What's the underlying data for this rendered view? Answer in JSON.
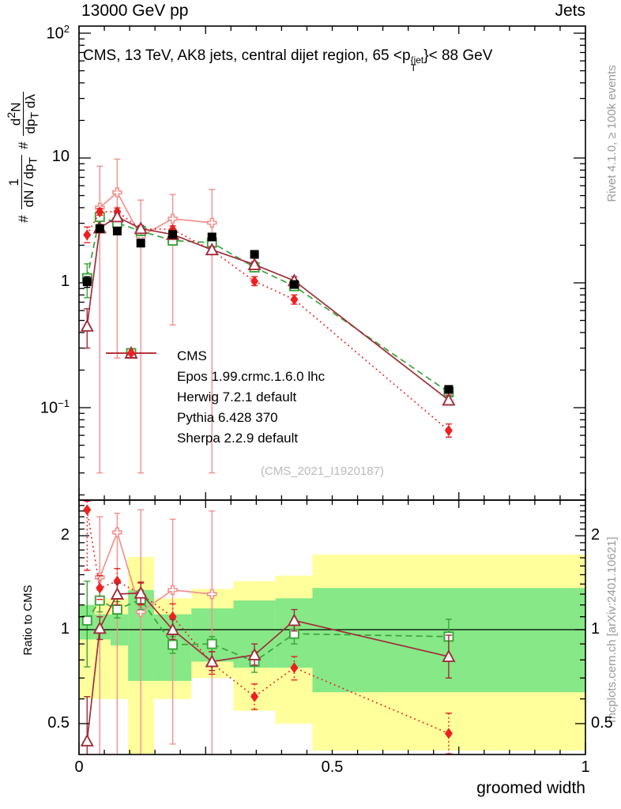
{
  "header": {
    "left": "13000 GeV pp",
    "right": "Jets"
  },
  "panel_title": {
    "pre": "CMS, 13 TeV, AK8 jets, central dijet region, 65 <p",
    "sup": "{jet",
    "sub": "T",
    "post": "}< 88 GeV"
  },
  "y_axis_label": {
    "hash1": "#",
    "f1num": "1",
    "f1den_main": "dN / dp",
    "f1den_sub": "T",
    "hash2": "#",
    "f2num_pre": "d",
    "f2num_sup": "2",
    "f2num_post": "N",
    "f2den_main": "dp",
    "f2den_sub": "T",
    "f2den_post": " dλ"
  },
  "right_margin": {
    "top": "Rivet 4.1.0, ≥ 100k events",
    "bottom": "mcplots.cern.ch [arXiv:2401.10621]"
  },
  "watermark": "(CMS_2021_I1920187)",
  "ratio_label": "Ratio to CMS",
  "x_title": "groomed width",
  "legend": {
    "items": [
      {
        "label": "CMS"
      },
      {
        "label": "Epos 1.99.crmc.1.6.0 lhc"
      },
      {
        "label": "Herwig 7.2.1 default"
      },
      {
        "label": "Pythia 6.428 370"
      },
      {
        "label": "Sherpa 2.2.9 default"
      }
    ]
  },
  "axes": {
    "x_ticks": [
      {
        "v": 0,
        "label": "0"
      },
      {
        "v": 0.5,
        "label": "0.5"
      },
      {
        "v": 1,
        "label": "1"
      }
    ],
    "main_y_ticks": [
      {
        "v": 100,
        "base": "10",
        "exp": "2"
      },
      {
        "v": 10,
        "base": "10",
        "exp": ""
      },
      {
        "v": 1,
        "base": "1",
        "exp": ""
      },
      {
        "v": 0.1,
        "base": "10",
        "exp": "−1"
      }
    ],
    "ratio_y_ticks": [
      {
        "v": 2,
        "label": "2"
      },
      {
        "v": 1,
        "label": "1"
      },
      {
        "v": 0.5,
        "label": "0.5"
      }
    ]
  },
  "chart_data": {
    "type": "line",
    "title": "CMS, 13 TeV, AK8 jets, central dijet region, 65 < pT^{jet} < 88 GeV",
    "xlabel": "groomed width",
    "ylabel": "(1 / dN/dpT) d2N/(dpT dlambda)",
    "ratio_ylabel": "Ratio to CMS",
    "x_range": [
      0,
      1
    ],
    "main_y_log_range": [
      0.018,
      114
    ],
    "ratio_y_log_range": [
      0.4,
      2.6
    ],
    "legend_position": "middle-left",
    "grid": false,
    "bin_edges": [
      0,
      0.031,
      0.0625,
      0.097,
      0.148,
      0.222,
      0.305,
      0.388,
      0.461,
      1.0
    ],
    "x": [
      0.016,
      0.041,
      0.0755,
      0.122,
      0.185,
      0.2625,
      0.3465,
      0.425,
      0.73
    ],
    "reference_band": {
      "yellow_color": "#ffff9c",
      "green_color": "#86e886",
      "yellow": [
        [
          0.6,
          1.2
        ],
        [
          0.6,
          1.26
        ],
        [
          0.6,
          1.26
        ],
        [
          0.4,
          1.71
        ],
        [
          0.6,
          1.26
        ],
        [
          0.7,
          1.35
        ],
        [
          0.55,
          1.43
        ],
        [
          0.5,
          1.49
        ],
        [
          0.41,
          1.74
        ]
      ],
      "green": [
        [
          0.93,
          1.2
        ],
        [
          0.93,
          1.12
        ],
        [
          0.89,
          1.12
        ],
        [
          0.685,
          1.34
        ],
        [
          0.685,
          1.12
        ],
        [
          0.79,
          1.17
        ],
        [
          0.755,
          1.24
        ],
        [
          0.755,
          1.26
        ],
        [
          0.63,
          1.36
        ]
      ]
    },
    "series": [
      {
        "name": "Epos 1.99.crmc.1.6.0 lhc",
        "color": "#f2918d",
        "marker": "open-cross",
        "line": "solid",
        "y": [
          null,
          4.0,
          5.3,
          2.36,
          3.26,
          3.03,
          null,
          null,
          null
        ],
        "yerr_lo": [
          null,
          0.03,
          0.25,
          0.03,
          0.46,
          0.03,
          null,
          null,
          null
        ],
        "yerr_hi": [
          null,
          8.6,
          9.8,
          4.6,
          5.1,
          5.6,
          null,
          null,
          null
        ],
        "ratio": [
          null,
          1.47,
          2.05,
          1.14,
          1.34,
          1.3,
          null,
          null,
          null
        ],
        "ratio_lo": [
          null,
          0.3,
          0.3,
          0.3,
          0.43,
          0.3,
          null,
          null,
          null
        ],
        "ratio_hi": [
          null,
          2.3,
          2.36,
          2.42,
          2.26,
          2.4,
          null,
          null,
          null
        ]
      },
      {
        "name": "Herwig 7.2.1 default",
        "color": "#3aa33a",
        "marker": "open-square",
        "line": "dashed",
        "y": [
          1.09,
          3.37,
          3.02,
          2.6,
          2.18,
          2.1,
          1.33,
          0.94,
          0.133
        ],
        "yerr_lo": [
          0.76,
          3.22,
          2.88,
          2.47,
          2.08,
          2.0,
          1.26,
          0.88,
          0.124
        ],
        "yerr_hi": [
          1.42,
          3.52,
          3.16,
          2.73,
          2.28,
          2.2,
          1.4,
          1.0,
          0.142
        ],
        "ratio": [
          1.07,
          1.24,
          1.16,
          1.25,
          0.895,
          0.9,
          0.79,
          0.97,
          0.95
        ],
        "ratio_lo": [
          0.76,
          1.14,
          1.09,
          1.16,
          0.84,
          0.85,
          0.73,
          0.9,
          0.83
        ],
        "ratio_hi": [
          1.43,
          1.34,
          1.23,
          1.34,
          0.95,
          0.95,
          0.85,
          1.04,
          1.08
        ]
      },
      {
        "name": "Pythia 6.428 370",
        "color": "#a02d3c",
        "marker": "open-triangle",
        "line": "solid",
        "y": [
          0.45,
          2.75,
          3.38,
          2.72,
          2.44,
          1.84,
          1.4,
          1.04,
          0.115
        ],
        "yerr_lo": [
          0.3,
          2.6,
          3.2,
          2.57,
          2.31,
          1.74,
          1.32,
          0.97,
          0.105
        ],
        "yerr_hi": [
          0.62,
          2.92,
          3.58,
          2.88,
          2.58,
          1.95,
          1.48,
          1.12,
          0.126
        ],
        "ratio": [
          0.44,
          1.01,
          1.3,
          1.31,
          1.0,
          0.79,
          0.83,
          1.07,
          0.82
        ],
        "ratio_lo": [
          0.29,
          0.93,
          1.2,
          1.21,
          0.93,
          0.74,
          0.77,
          0.99,
          0.7
        ],
        "ratio_hi": [
          0.61,
          1.1,
          1.41,
          1.42,
          1.08,
          0.85,
          0.9,
          1.16,
          0.96
        ]
      },
      {
        "name": "Sherpa 2.2.9 default",
        "color": "#ee2020",
        "marker": "filled-diamond",
        "line": "dotted",
        "y": [
          2.42,
          3.7,
          3.72,
          2.7,
          2.68,
          1.82,
          1.03,
          0.735,
          0.0655
        ],
        "yerr_lo": [
          2.1,
          3.48,
          3.48,
          2.53,
          2.52,
          1.71,
          0.95,
          0.675,
          0.058
        ],
        "yerr_hi": [
          2.8,
          3.95,
          3.98,
          2.88,
          2.86,
          1.94,
          1.12,
          0.8,
          0.074
        ],
        "ratio": [
          2.42,
          1.36,
          1.43,
          1.3,
          1.1,
          0.78,
          0.61,
          0.755,
          0.465
        ],
        "ratio_lo": [
          1.55,
          1.25,
          1.31,
          1.2,
          1.0,
          0.72,
          0.555,
          0.69,
          0.4
        ],
        "ratio_hi": [
          2.58,
          1.49,
          1.57,
          1.41,
          1.21,
          0.85,
          0.67,
          0.82,
          0.54
        ]
      },
      {
        "name": "CMS",
        "color": "#000000",
        "marker": "filled-square",
        "line": "none",
        "y": [
          1.02,
          2.72,
          2.6,
          2.08,
          2.44,
          2.33,
          1.69,
          0.97,
          0.14
        ],
        "yerr_lo": [
          0.92,
          2.58,
          2.48,
          1.98,
          2.33,
          2.22,
          1.61,
          0.92,
          0.131
        ],
        "yerr_hi": [
          1.12,
          2.86,
          2.72,
          2.18,
          2.55,
          2.44,
          1.77,
          1.02,
          0.149
        ],
        "ratio": null,
        "ratio_lo": null,
        "ratio_hi": null
      }
    ]
  }
}
